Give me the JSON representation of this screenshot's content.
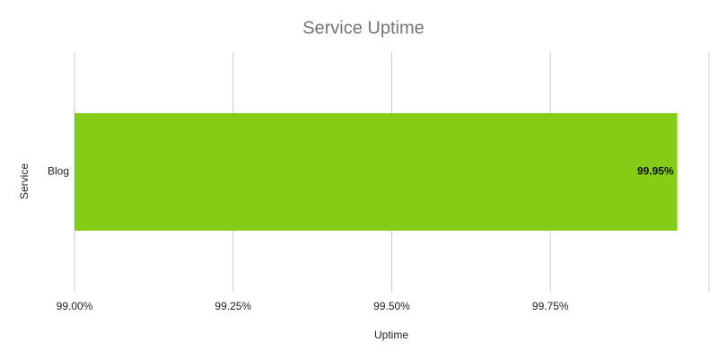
{
  "chart_data": {
    "type": "hbar",
    "title": "Service Uptime",
    "categories": [
      "Blog"
    ],
    "values": [
      99.95
    ],
    "value_labels": [
      "99.95%"
    ],
    "color": "#85cc17",
    "x_label": "Uptime",
    "y_label": "Service",
    "xlim": [
      99,
      100
    ],
    "xticks": [
      {
        "value": 99,
        "label": "99.00%"
      },
      {
        "value": 99.25,
        "label": "99.25%"
      },
      {
        "value": 99.5,
        "label": "99.50%"
      },
      {
        "value": 99.75,
        "label": "99.75%"
      }
    ],
    "grid": true
  }
}
